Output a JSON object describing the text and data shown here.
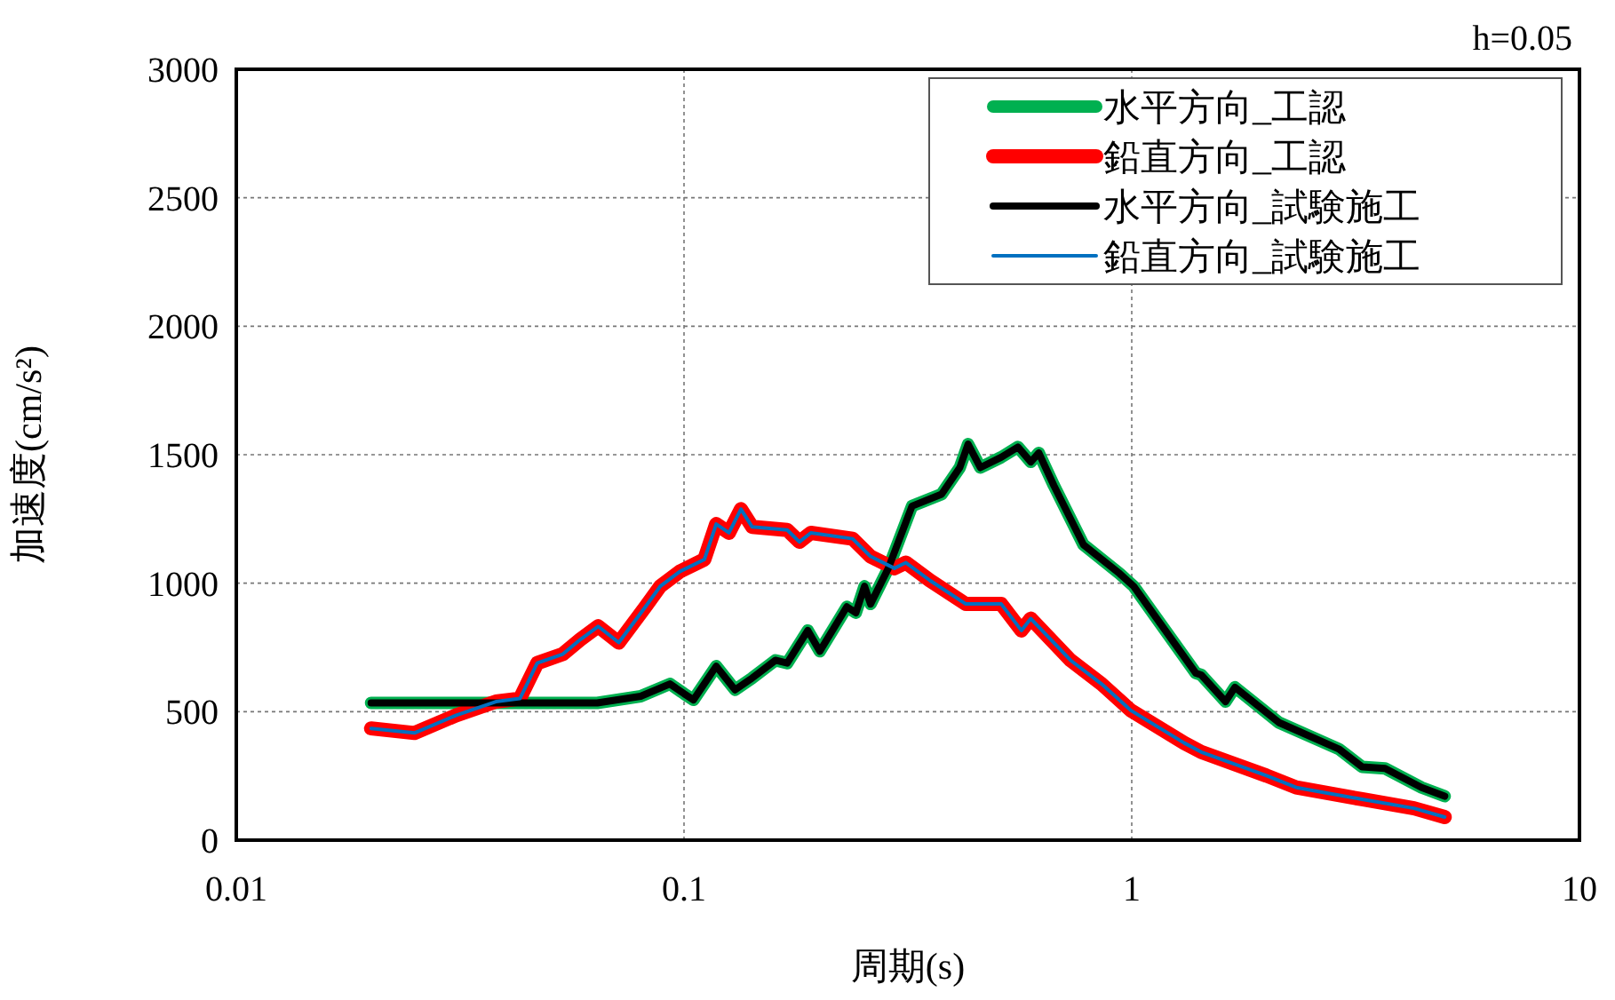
{
  "chart_data": {
    "type": "line",
    "xlabel": "周期(s)",
    "ylabel": "加速度(cm/s²)",
    "annotations": [
      "h=0.05"
    ],
    "log": "x",
    "grid": true,
    "legend": "top right",
    "xlim": [
      0.01,
      10
    ],
    "xticks": [
      0.01,
      0.1,
      1,
      10
    ],
    "ylim": [
      0,
      3000
    ],
    "yticks": [
      0,
      500,
      1000,
      1500,
      2000,
      2500,
      3000
    ],
    "series": [
      {
        "name": "水平方向_工認",
        "color": "#00b050",
        "x": [
          0.02,
          0.03,
          0.04,
          0.05,
          0.064,
          0.08,
          0.093,
          0.1,
          0.105,
          0.118,
          0.13,
          0.142,
          0.16,
          0.17,
          0.189,
          0.201,
          0.231,
          0.242,
          0.253,
          0.261,
          0.286,
          0.323,
          0.376,
          0.413,
          0.431,
          0.459,
          0.511,
          0.557,
          0.595,
          0.62,
          0.67,
          0.78,
          0.94,
          1.01,
          1.39,
          1.43,
          1.62,
          1.7,
          2.13,
          2.9,
          3.27,
          3.68,
          4.44,
          5.0
        ],
        "values": [
          534,
          534,
          534,
          534,
          534,
          560,
          608,
          570,
          546,
          677,
          585,
          631,
          700,
          689,
          816,
          735,
          908,
          885,
          988,
          919,
          1058,
          1300,
          1346,
          1450,
          1541,
          1450,
          1490,
          1530,
          1472,
          1507,
          1380,
          1150,
          1037,
          988,
          650,
          643,
          539,
          595,
          458,
          355,
          285,
          279,
          205,
          171
        ]
      },
      {
        "name": "鉛直方向_工認",
        "color": "#ff0000",
        "x": [
          0.02,
          0.025,
          0.031,
          0.038,
          0.043,
          0.047,
          0.0536,
          0.0587,
          0.0643,
          0.0715,
          0.082,
          0.0885,
          0.098,
          0.111,
          0.118,
          0.126,
          0.134,
          0.142,
          0.17,
          0.181,
          0.192,
          0.238,
          0.261,
          0.295,
          0.313,
          0.354,
          0.426,
          0.511,
          0.567,
          0.595,
          0.73,
          0.856,
          0.995,
          1.31,
          1.43,
          2.0,
          2.33,
          3.27,
          4.27,
          5.0
        ],
        "values": [
          435,
          417,
          486,
          539,
          551,
          689,
          724,
          781,
          832,
          769,
          908,
          988,
          1046,
          1092,
          1230,
          1196,
          1288,
          1219,
          1207,
          1161,
          1196,
          1173,
          1104,
          1058,
          1080,
          1011,
          919,
          919,
          816,
          862,
          700,
          608,
          505,
          378,
          343,
          251,
          205,
          159,
          124,
          90
        ]
      },
      {
        "name": "水平方向_試験施工",
        "color": "#000000",
        "x": [
          0.02,
          0.03,
          0.04,
          0.05,
          0.064,
          0.08,
          0.093,
          0.1,
          0.105,
          0.118,
          0.13,
          0.142,
          0.16,
          0.17,
          0.189,
          0.201,
          0.231,
          0.242,
          0.253,
          0.261,
          0.286,
          0.323,
          0.376,
          0.413,
          0.431,
          0.459,
          0.511,
          0.557,
          0.595,
          0.62,
          0.67,
          0.78,
          0.94,
          1.01,
          1.39,
          1.43,
          1.62,
          1.7,
          2.13,
          2.9,
          3.27,
          3.68,
          4.44,
          5.0
        ],
        "values": [
          534,
          534,
          534,
          534,
          534,
          560,
          608,
          570,
          546,
          677,
          585,
          631,
          700,
          689,
          816,
          735,
          908,
          885,
          988,
          919,
          1058,
          1300,
          1346,
          1450,
          1541,
          1450,
          1490,
          1530,
          1472,
          1507,
          1380,
          1150,
          1037,
          988,
          650,
          643,
          539,
          595,
          458,
          355,
          285,
          279,
          205,
          171
        ]
      },
      {
        "name": "鉛直方向_試験施工",
        "color": "#0070c0",
        "x": [
          0.02,
          0.025,
          0.031,
          0.038,
          0.043,
          0.047,
          0.0536,
          0.0587,
          0.0643,
          0.0715,
          0.082,
          0.0885,
          0.098,
          0.111,
          0.118,
          0.126,
          0.134,
          0.142,
          0.17,
          0.181,
          0.192,
          0.238,
          0.261,
          0.295,
          0.313,
          0.354,
          0.426,
          0.511,
          0.567,
          0.595,
          0.73,
          0.856,
          0.995,
          1.31,
          1.43,
          2.0,
          2.33,
          3.27,
          4.27,
          5.0
        ],
        "values": [
          435,
          417,
          486,
          539,
          551,
          689,
          724,
          781,
          832,
          769,
          908,
          988,
          1046,
          1092,
          1230,
          1196,
          1288,
          1219,
          1207,
          1161,
          1196,
          1173,
          1104,
          1058,
          1080,
          1011,
          919,
          919,
          816,
          862,
          700,
          608,
          505,
          378,
          343,
          251,
          205,
          159,
          124,
          90
        ]
      }
    ]
  }
}
